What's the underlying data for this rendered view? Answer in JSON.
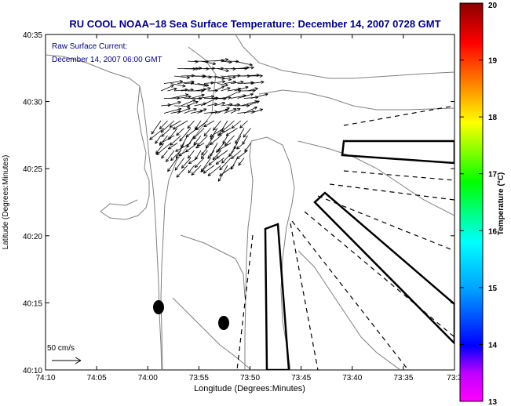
{
  "figure": {
    "title": "RU COOL  NOAA−18  Sea Surface Temperature:  December 14, 2007 0728 GMT",
    "annotation_line1": "Raw Surface Current:",
    "annotation_line2": "December 14, 2007 06:00 GMT",
    "scale_label": "50 cm/s",
    "xlabel": "Longitude (Degrees:Minutes)",
    "ylabel": "Latitude (Degrees:Minutes)",
    "x_ticks": [
      "74:10",
      "74:05",
      "74:00",
      "73:55",
      "73:50",
      "73:45",
      "73:40",
      "73:35",
      "73:3"
    ],
    "y_ticks": [
      "40:35",
      "40:30",
      "40:25",
      "40:20",
      "40:15",
      "40:10"
    ]
  },
  "colorbar": {
    "label": "Temperature (°C)",
    "ticks": [
      "20",
      "19",
      "18",
      "17",
      "16",
      "15",
      "14",
      "13"
    ],
    "range": [
      13,
      20
    ],
    "colors": [
      "#ff00ff",
      "#0000ff",
      "#00ffff",
      "#00ff00",
      "#ffff00",
      "#ff8000",
      "#ff0000",
      "#8b0000"
    ]
  },
  "colors": {
    "title": "#00008b",
    "annotation": "#00008b",
    "axis": "#000000",
    "bathymetry": "#808080",
    "vectors": "#000000"
  },
  "markers": [
    "buoy-marker-1",
    "buoy-marker-2"
  ]
}
